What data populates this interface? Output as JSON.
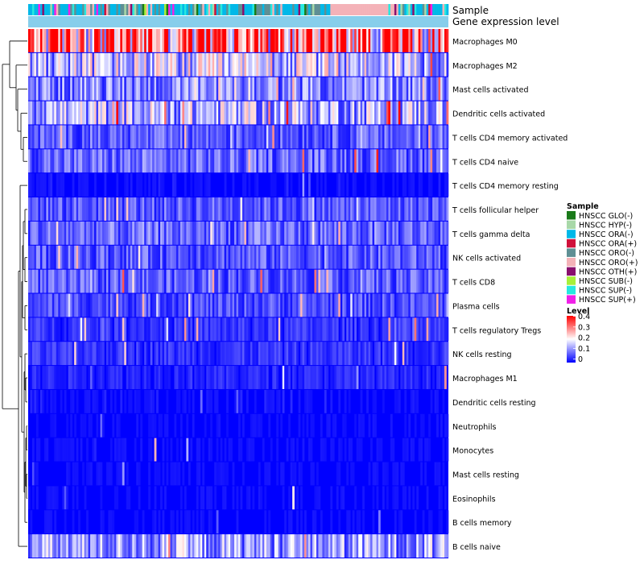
{
  "chart_data": {
    "type": "heatmap",
    "title": "",
    "annotation_tracks": [
      "Sample",
      "Gene expression level"
    ],
    "rows": [
      "Macrophages M0",
      "Macrophages M2",
      "Mast cells activated",
      "Dendritic cells activated",
      "T cells CD4 memory activated",
      "T cells CD4 naive",
      "T cells CD4 memory resting",
      "T cells follicular helper",
      "T cells gamma delta",
      "NK cells activated",
      "T cells CD8",
      "Plasma cells",
      "T cells regulatory  Tregs",
      "NK cells resting",
      "Macrophages M1",
      "Dendritic cells resting",
      "Neutrophils",
      "Monocytes",
      "Mast cells resting",
      "Eosinophils",
      "B cells memory",
      "B cells naive"
    ],
    "row_mean_levels": [
      0.32,
      0.15,
      0.1,
      0.14,
      0.07,
      0.08,
      0.02,
      0.07,
      0.08,
      0.07,
      0.07,
      0.06,
      0.04,
      0.04,
      0.03,
      0.02,
      0.01,
      0.01,
      0.01,
      0.005,
      0.005,
      0.12
    ],
    "value_range": [
      0,
      0.4
    ],
    "sample_legend": {
      "title": "Sample",
      "entries": [
        {
          "label": "HNSCC GLO(-)",
          "color": "#1a7a1a"
        },
        {
          "label": "HNSCC HYP(-)",
          "color": "#a8d8a8"
        },
        {
          "label": "HNSCC ORA(-)",
          "color": "#00b8e8"
        },
        {
          "label": "HNSCC ORA(+)",
          "color": "#d0103a"
        },
        {
          "label": "HNSCC ORO(-)",
          "color": "#5f8f94"
        },
        {
          "label": "HNSCC ORO(+)",
          "color": "#f4b2b8"
        },
        {
          "label": "HNSCC OTH(+)",
          "color": "#8a0f6e"
        },
        {
          "label": "HNSCC SUB(-)",
          "color": "#a8f03a"
        },
        {
          "label": "HNSCC SUP(-)",
          "color": "#26e8e0"
        },
        {
          "label": "HNSCC SUP(+)",
          "color": "#f020e8"
        }
      ]
    },
    "level_legend": {
      "title": "Level",
      "ticks": [
        "0.4",
        "0.3",
        "0.2",
        "0.1",
        "0"
      ],
      "colors": [
        "#0000ff",
        "#ffffff",
        "#ff0000"
      ]
    },
    "expression_track_color": "#87ceeb"
  }
}
